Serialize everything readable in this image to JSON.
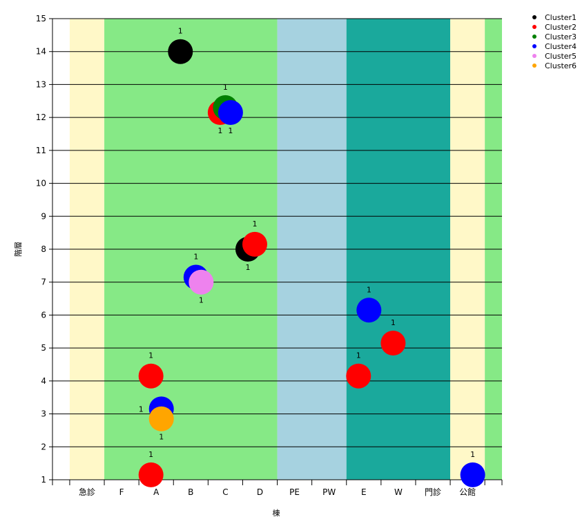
{
  "chart_data": {
    "type": "scatter",
    "title": "",
    "xlabel": "棟",
    "ylabel": "階層",
    "ylim": [
      1,
      15
    ],
    "y_ticks": [
      1,
      2,
      3,
      4,
      5,
      6,
      7,
      8,
      9,
      10,
      11,
      12,
      13,
      14,
      15
    ],
    "grid": "horizontal",
    "legend_position": "top-right",
    "categories": [
      "急診",
      "F",
      "A",
      "B",
      "C",
      "D",
      "PE",
      "PW",
      "E",
      "W",
      "門診",
      "公館"
    ],
    "background_bands": [
      {
        "from": -1.0,
        "to": -0.5,
        "color": "#ffffff"
      },
      {
        "from": -0.5,
        "to": 0.5,
        "color": "#fff8c8"
      },
      {
        "from": 0.5,
        "to": 5.5,
        "color": "#86e986"
      },
      {
        "from": 5.5,
        "to": 7.5,
        "color": "#a6d2e0"
      },
      {
        "from": 7.5,
        "to": 10.5,
        "color": "#1aa99c"
      },
      {
        "from": 10.5,
        "to": 11.5,
        "color": "#fff8c8"
      },
      {
        "from": 11.5,
        "to": 12.0,
        "color": "#86e986"
      }
    ],
    "series": [
      {
        "name": "Cluster1",
        "color": "#000000",
        "points": [
          {
            "x": 2.7,
            "y": 14,
            "label": "1",
            "label_pos": "above"
          },
          {
            "x": 4.65,
            "y": 8,
            "label": "1",
            "label_pos": "below"
          }
        ]
      },
      {
        "name": "Cluster2",
        "color": "#ff0000",
        "points": [
          {
            "x": 3.85,
            "y": 12.15,
            "label": "1",
            "label_pos": "below"
          },
          {
            "x": 4.85,
            "y": 8.15,
            "label": "1",
            "label_pos": "above"
          },
          {
            "x": 1.85,
            "y": 4.15,
            "label": "1",
            "label_pos": "above"
          },
          {
            "x": 1.85,
            "y": 1.15,
            "label": "1",
            "label_pos": "above"
          },
          {
            "x": 7.85,
            "y": 4.15,
            "label": "1",
            "label_pos": "above"
          },
          {
            "x": 8.85,
            "y": 5.15,
            "label": "1",
            "label_pos": "above"
          }
        ]
      },
      {
        "name": "Cluster3",
        "color": "#008000",
        "points": [
          {
            "x": 4.0,
            "y": 12.3,
            "label": "1",
            "label_pos": "above"
          }
        ]
      },
      {
        "name": "Cluster4",
        "color": "#0000ff",
        "points": [
          {
            "x": 4.15,
            "y": 12.15,
            "label": "1",
            "label_pos": "below"
          },
          {
            "x": 3.15,
            "y": 7.15,
            "label": "1",
            "label_pos": "above"
          },
          {
            "x": 2.15,
            "y": 3.15,
            "label": "1",
            "label_pos": "left"
          },
          {
            "x": 8.15,
            "y": 6.15,
            "label": "1",
            "label_pos": "above"
          },
          {
            "x": 11.15,
            "y": 1.15,
            "label": "1",
            "label_pos": "above"
          }
        ]
      },
      {
        "name": "Cluster5",
        "color": "#ee82ee",
        "points": [
          {
            "x": 3.3,
            "y": 7.0,
            "label": "1",
            "label_pos": "below"
          }
        ]
      },
      {
        "name": "Cluster6",
        "color": "#ffa500",
        "points": [
          {
            "x": 2.15,
            "y": 2.85,
            "label": "1",
            "label_pos": "below"
          }
        ]
      }
    ]
  }
}
